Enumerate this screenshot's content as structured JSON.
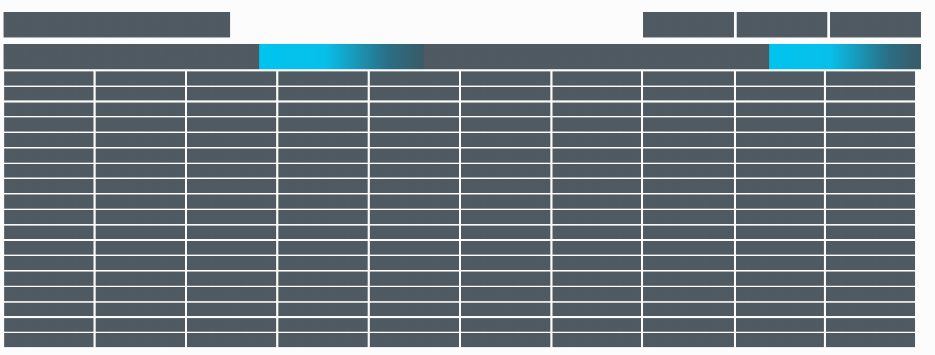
{
  "header": {
    "title": "",
    "actions": [
      {
        "label": ""
      },
      {
        "label": ""
      },
      {
        "label": ""
      }
    ]
  },
  "toolbar": {
    "segments": [
      {
        "label": "",
        "accent": false
      },
      {
        "label": "",
        "accent": true
      },
      {
        "label": "",
        "accent": false
      },
      {
        "label": "",
        "accent": true
      }
    ]
  },
  "grid": {
    "columns": 10,
    "rows": 18,
    "cells": []
  },
  "colors": {
    "background": "#fcfcfc",
    "panel": "#47535c",
    "accent": "#00c4ee"
  }
}
